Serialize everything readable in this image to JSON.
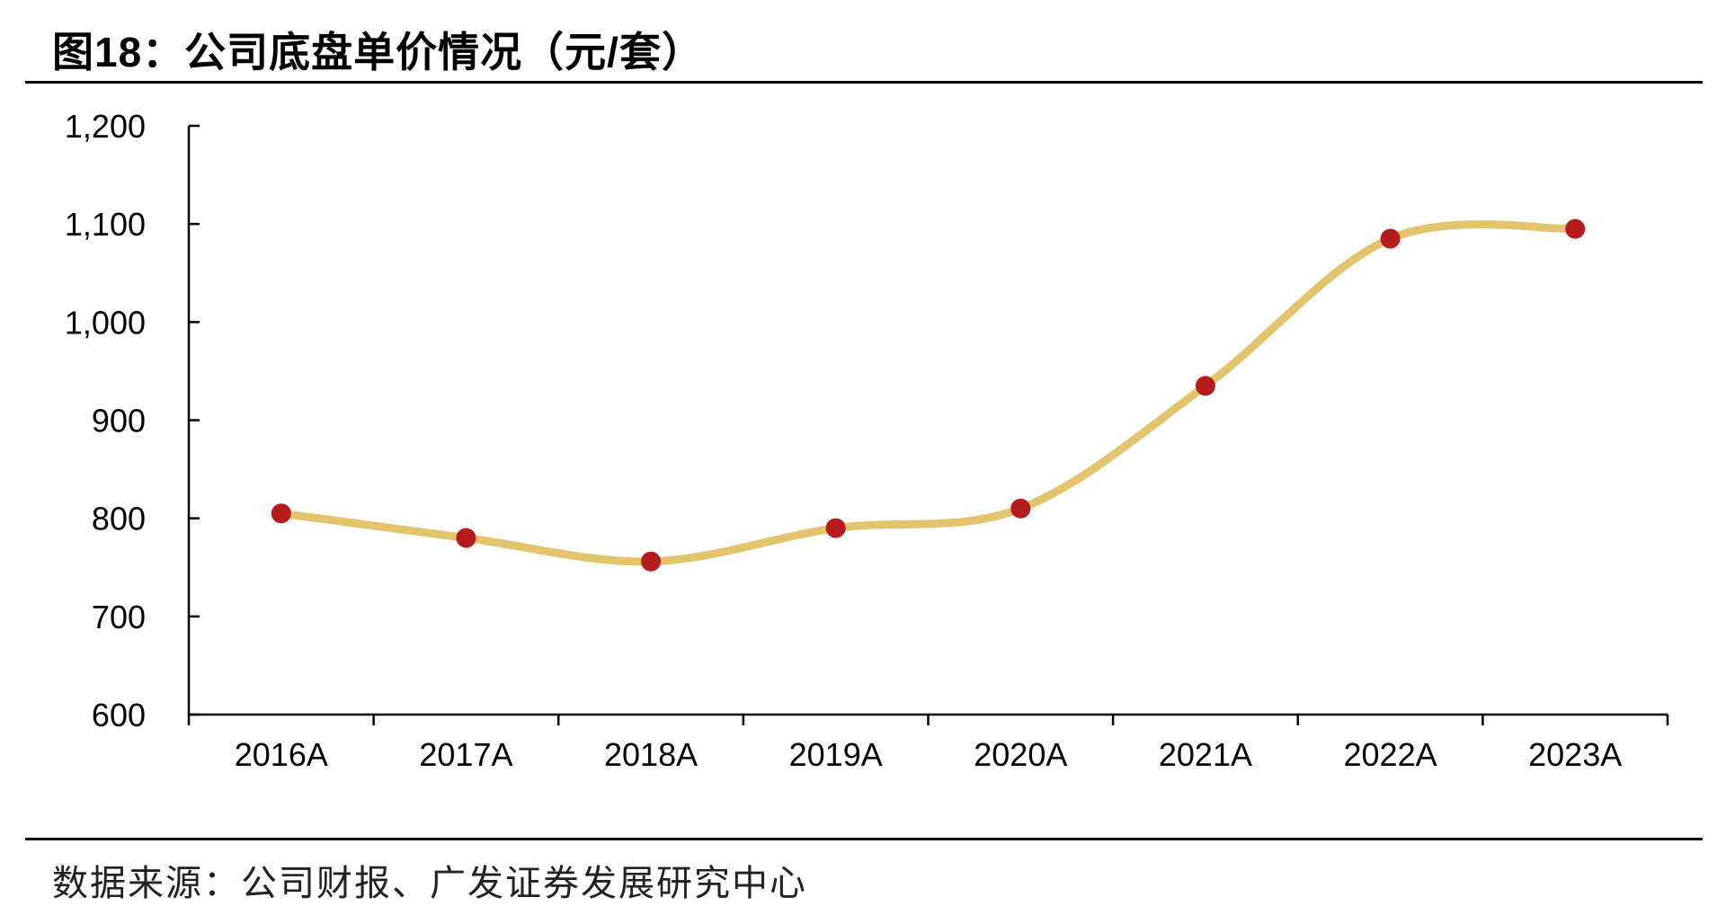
{
  "title": "图18：公司底盘单价情况（元/套）",
  "source": "数据来源：公司财报、广发证券发展研究中心",
  "chart_data": {
    "type": "line",
    "categories": [
      "2016A",
      "2017A",
      "2018A",
      "2019A",
      "2020A",
      "2021A",
      "2022A",
      "2023A"
    ],
    "series": [
      {
        "values": [
          805,
          780,
          756,
          790,
          810,
          935,
          1085,
          1095
        ]
      }
    ],
    "ylim": [
      600,
      1200
    ],
    "yticks": [
      600,
      700,
      800,
      900,
      1000,
      1100,
      1200
    ],
    "ytick_labels": [
      "600",
      "700",
      "800",
      "900",
      "1,000",
      "1,100",
      "1,200"
    ],
    "line_color": "#E3C46C",
    "marker_color": "#B71C1C",
    "smooth": true,
    "grid": false
  }
}
